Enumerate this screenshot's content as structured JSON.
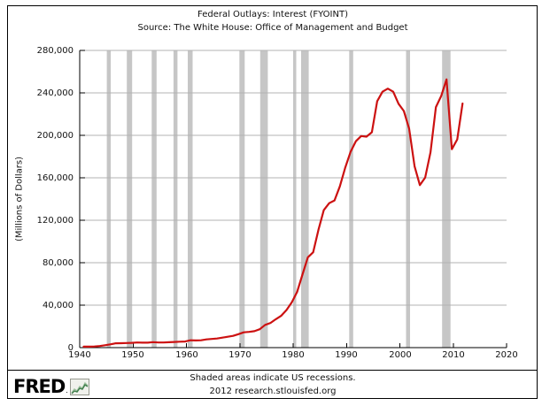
{
  "chart_data": {
    "type": "line",
    "title": "Federal Outlays: Interest (FYOINT)",
    "subtitle": "Source: The White House: Office of Management and Budget",
    "ylabel": "(Millions of Dollars)",
    "xlabel": "",
    "xlim": [
      1940,
      2020
    ],
    "ylim": [
      0,
      280000
    ],
    "xticks": [
      1940,
      1950,
      1960,
      1970,
      1980,
      1990,
      2000,
      2010,
      2020
    ],
    "xtick_labels": [
      "1940",
      "1950",
      "1960",
      "1970",
      "1980",
      "1990",
      "2000",
      "2010",
      "2020"
    ],
    "yticks": [
      0,
      40000,
      80000,
      120000,
      160000,
      200000,
      240000,
      280000
    ],
    "ytick_labels": [
      "0",
      "40,000",
      "80,000",
      "120,000",
      "160,000",
      "200,000",
      "240,000",
      "280,000"
    ],
    "grid": true,
    "legend_position": "none",
    "x_plot_offset": 0.75,
    "x": [
      1940,
      1941,
      1942,
      1943,
      1944,
      1945,
      1946,
      1947,
      1948,
      1949,
      1950,
      1951,
      1952,
      1953,
      1954,
      1955,
      1956,
      1957,
      1958,
      1959,
      1960,
      1961,
      1962,
      1963,
      1964,
      1965,
      1966,
      1967,
      1968,
      1969,
      1970,
      1971,
      1972,
      1973,
      1974,
      1975,
      1976,
      1977,
      1978,
      1979,
      1980,
      1981,
      1982,
      1983,
      1984,
      1985,
      1986,
      1987,
      1988,
      1989,
      1990,
      1991,
      1992,
      1993,
      1994,
      1995,
      1996,
      1997,
      1998,
      1999,
      2000,
      2001,
      2002,
      2003,
      2004,
      2005,
      2006,
      2007,
      2008,
      2009,
      2010,
      2011
    ],
    "values": [
      899,
      943,
      1052,
      1529,
      2219,
      3112,
      4111,
      4204,
      4341,
      4523,
      4812,
      4665,
      4701,
      5156,
      4811,
      4850,
      5079,
      5354,
      5604,
      5762,
      6947,
      6716,
      6889,
      7740,
      8199,
      8591,
      9386,
      10268,
      11090,
      12699,
      14380,
      14841,
      15478,
      17349,
      21449,
      23244,
      26727,
      29901,
      35458,
      42636,
      52538,
      68774,
      85044,
      89828,
      111123,
      129504,
      136047,
      138652,
      151838,
      169266,
      184347,
      194448,
      199344,
      198713,
      202957,
      232134,
      241053,
      243984,
      241118,
      229755,
      222949,
      206167,
      170949,
      153073,
      160245,
      183986,
      226603,
      237109,
      252757,
      186902,
      196194,
      229962
    ],
    "recessions": [
      [
        1945.08,
        1945.83
      ],
      [
        1948.83,
        1949.83
      ],
      [
        1953.5,
        1954.42
      ],
      [
        1957.58,
        1958.33
      ],
      [
        1960.25,
        1961.17
      ],
      [
        1969.92,
        1970.92
      ],
      [
        1973.83,
        1975.25
      ],
      [
        1980.0,
        1980.58
      ],
      [
        1981.5,
        1982.92
      ],
      [
        1990.5,
        1991.25
      ],
      [
        2001.17,
        2001.92
      ],
      [
        2007.92,
        2009.5
      ]
    ],
    "colors": {
      "line": "#cc1111",
      "recession": "#c6c6c6",
      "grid": "#b3b3b3",
      "axis": "#000000"
    }
  },
  "footer": {
    "note": "Shaded areas indicate US recessions.",
    "credit": "2012 research.stlouisfed.org",
    "logo_text": "FRED",
    "logo_mark": "."
  }
}
